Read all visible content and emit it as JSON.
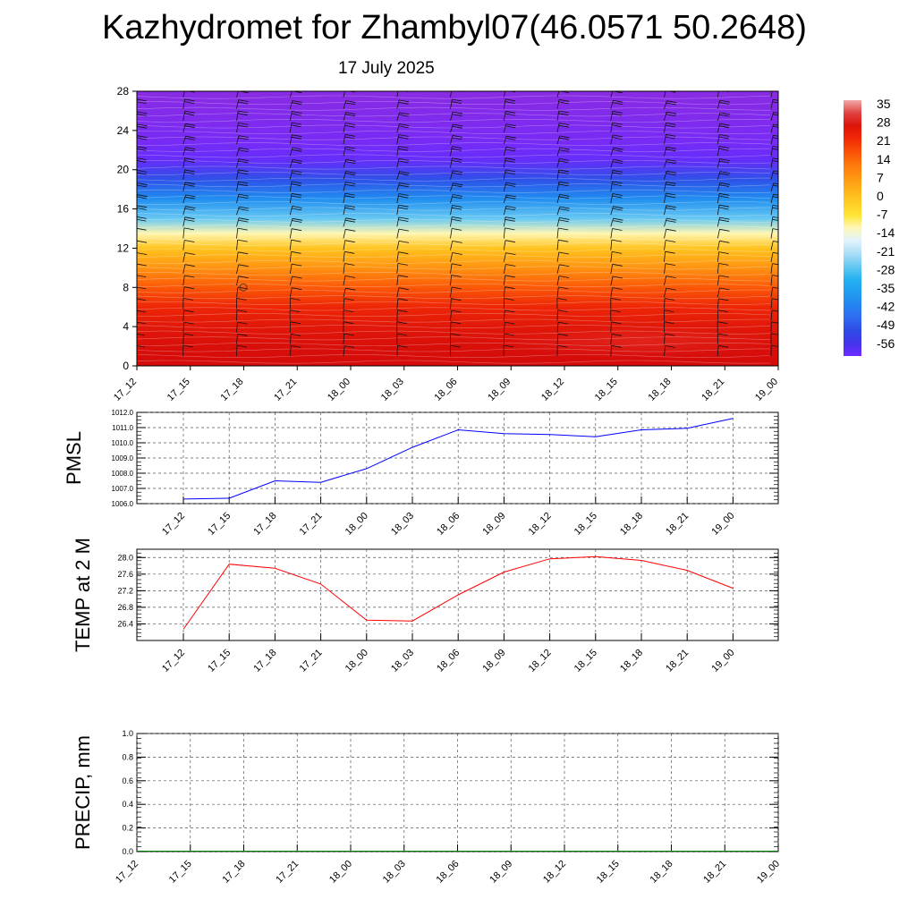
{
  "title": "Kazhydromet for Zhambyl07(46.0571 50.2648)",
  "subtitle": "17 July 2025",
  "time_labels": [
    "17_12",
    "17_15",
    "17_18",
    "17_21",
    "18_00",
    "18_03",
    "18_06",
    "18_09",
    "18_12",
    "18_15",
    "18_18",
    "18_21",
    "19_00"
  ],
  "chart_data": [
    {
      "type": "heatmap",
      "name": "cross-section",
      "x": [
        "17_12",
        "17_15",
        "17_18",
        "17_21",
        "18_00",
        "18_03",
        "18_06",
        "18_09",
        "18_12",
        "18_15",
        "18_18",
        "18_21",
        "19_00"
      ],
      "ylim": [
        0,
        28
      ],
      "yticks": [
        0,
        4,
        8,
        12,
        16,
        20,
        24,
        28
      ],
      "colorbar": {
        "labels": [
          "35",
          "28",
          "21",
          "14",
          "7",
          "0",
          "-7",
          "-14",
          "-21",
          "-28",
          "-35",
          "-42",
          "-49",
          "-56"
        ],
        "range": [
          -56,
          35
        ]
      },
      "profile": [
        {
          "level": 0,
          "value": 28
        },
        {
          "level": 2,
          "value": 27
        },
        {
          "level": 4,
          "value": 25
        },
        {
          "level": 6,
          "value": 22
        },
        {
          "level": 8,
          "value": 16
        },
        {
          "level": 10,
          "value": 8
        },
        {
          "level": 12,
          "value": 0
        },
        {
          "level": 13.5,
          "value": -10
        },
        {
          "level": 15,
          "value": -24
        },
        {
          "level": 17,
          "value": -36
        },
        {
          "level": 19,
          "value": -46
        },
        {
          "level": 21,
          "value": -55
        },
        {
          "level": 23,
          "value": -58
        },
        {
          "level": 28,
          "value": -62
        }
      ]
    },
    {
      "type": "line",
      "ylabel": "PMSL",
      "ylim": [
        1006.0,
        1012.0
      ],
      "yticks": [
        "1006.0",
        "1007.0",
        "1008.0",
        "1009.0",
        "1010.0",
        "1011.0",
        "1012.0"
      ],
      "x": [
        "17_12",
        "17_15",
        "17_18",
        "17_21",
        "18_00",
        "18_03",
        "18_06",
        "18_09",
        "18_12",
        "18_15",
        "18_18",
        "18_21",
        "19_00"
      ],
      "values": [
        1006.3,
        1006.35,
        1007.5,
        1007.4,
        1008.3,
        1009.7,
        1010.85,
        1010.6,
        1010.55,
        1010.4,
        1010.85,
        1010.95,
        1011.6
      ],
      "color": "#0000ff"
    },
    {
      "type": "line",
      "ylabel": "TEMP at 2 M",
      "ylim": [
        26.0,
        28.2
      ],
      "yticks": [
        "26.4",
        "26.8",
        "27.2",
        "27.6",
        "28.0"
      ],
      "x": [
        "17_12",
        "17_15",
        "17_18",
        "17_21",
        "18_00",
        "18_03",
        "18_06",
        "18_09",
        "18_12",
        "18_15",
        "18_18",
        "18_21",
        "19_00"
      ],
      "values": [
        26.27,
        27.84,
        27.74,
        27.36,
        26.49,
        26.47,
        27.1,
        27.65,
        27.97,
        28.02,
        27.93,
        27.69,
        27.26
      ],
      "color": "#ff0000"
    },
    {
      "type": "line",
      "ylabel": "PRECIP, mm",
      "ylim": [
        0.0,
        1.0
      ],
      "yticks": [
        "0.0",
        "0.2",
        "0.4",
        "0.6",
        "0.8",
        "1.0"
      ],
      "x": [
        "17_12",
        "17_15",
        "17_18",
        "17_21",
        "18_00",
        "18_03",
        "18_06",
        "18_09",
        "18_12",
        "18_15",
        "18_18",
        "18_21",
        "19_00"
      ],
      "values": [
        0,
        0,
        0,
        0,
        0,
        0,
        0,
        0,
        0,
        0,
        0,
        0,
        0
      ],
      "color": "#008000"
    }
  ]
}
